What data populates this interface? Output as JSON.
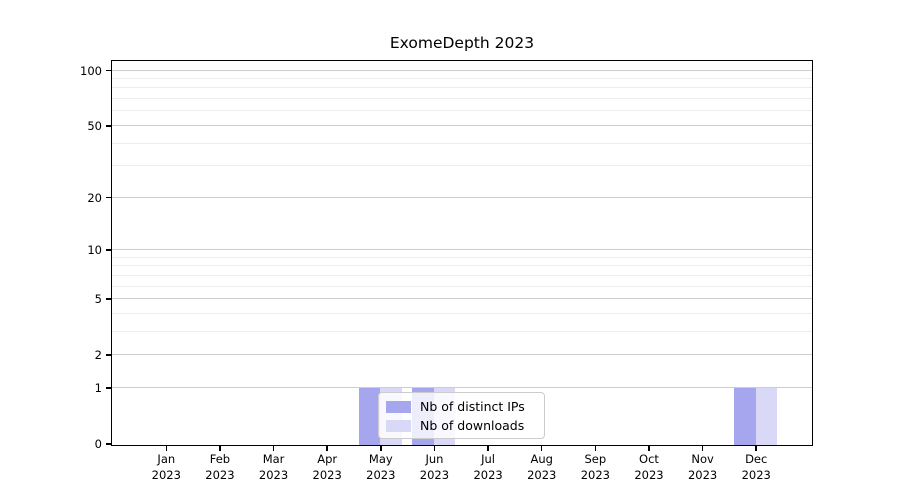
{
  "chart_data": {
    "type": "bar",
    "title": "ExomeDepth 2023",
    "categories": [
      "Jan 2023",
      "Feb 2023",
      "Mar 2023",
      "Apr 2023",
      "May 2023",
      "Jun 2023",
      "Jul 2023",
      "Aug 2023",
      "Sep 2023",
      "Oct 2023",
      "Nov 2023",
      "Dec 2023"
    ],
    "x_tick_months": [
      "Jan",
      "Feb",
      "Mar",
      "Apr",
      "May",
      "Jun",
      "Jul",
      "Aug",
      "Sep",
      "Oct",
      "Nov",
      "Dec"
    ],
    "x_tick_year": "2023",
    "series": [
      {
        "name": "Nb of distinct IPs",
        "color": "#a6a6ef",
        "values": [
          0,
          0,
          0,
          0,
          1,
          1,
          0,
          0,
          0,
          0,
          0,
          1
        ]
      },
      {
        "name": "Nb of downloads",
        "color": "#d9d9f7",
        "values": [
          0,
          0,
          0,
          0,
          1,
          1,
          0,
          0,
          0,
          0,
          0,
          1
        ]
      }
    ],
    "y_scale": "log(1+x)",
    "ylim": [
      0,
      112
    ],
    "y_major_ticks": [
      0,
      1,
      2,
      5,
      10,
      20,
      50,
      100
    ],
    "y_minor_ticks": [
      3,
      4,
      6,
      7,
      8,
      9,
      30,
      40,
      60,
      70,
      80,
      90
    ],
    "grid": true,
    "legend": {
      "labels": [
        "Nb of distinct IPs",
        "Nb of downloads"
      ],
      "position": "inside-bottom-center-left"
    }
  },
  "colors": {
    "background": "#ffffff",
    "spine": "#000000",
    "grid_major": "#cdcdcd",
    "grid_minor": "#ededed",
    "text": "#1a1a1a",
    "legend_border": "#cccccc",
    "legend_bg": "rgba(255,255,255,0.8)"
  }
}
